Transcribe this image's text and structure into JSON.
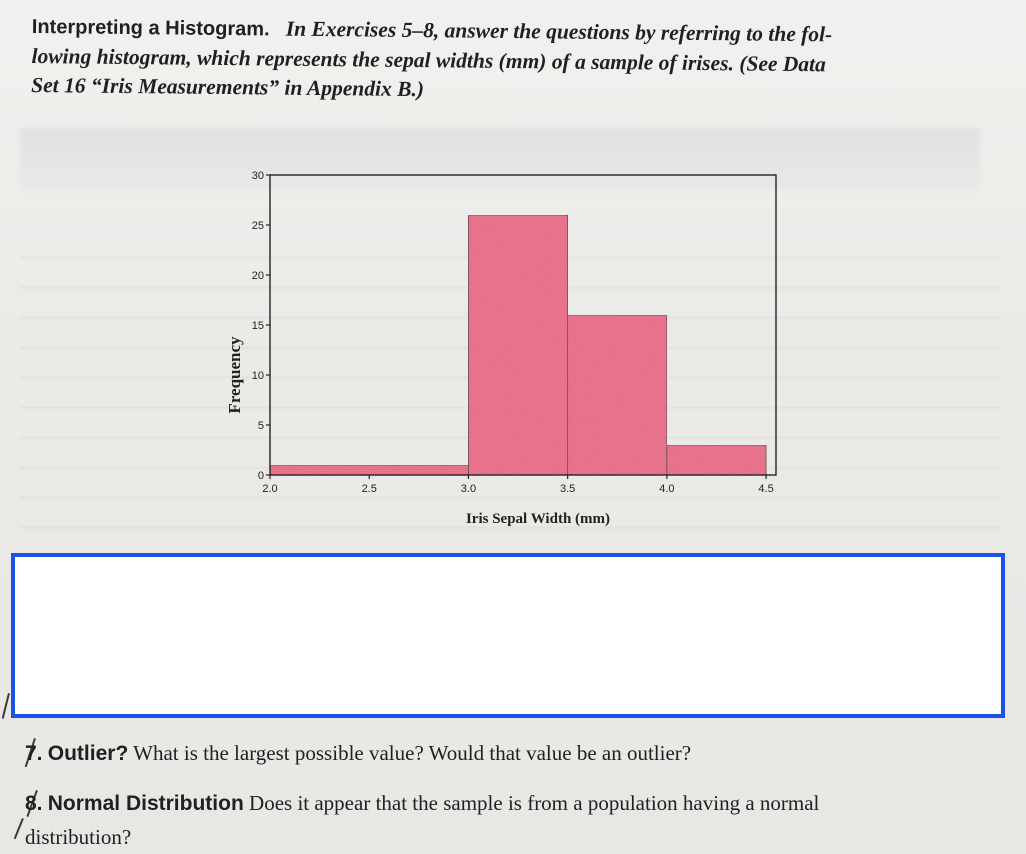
{
  "intro": {
    "heading": "Interpreting a Histogram.",
    "line1": "In Exercises 5–8, answer the questions by referring to the fol-",
    "line2": "lowing histogram, which represents the sepal widths (mm) of a sample of irises. (See Data",
    "line3": "Set 16 “Iris Measurements” in Appendix B.)"
  },
  "chart_data": {
    "type": "bar",
    "title": "",
    "xlabel": "Iris Sepal Width (mm)",
    "ylabel": "Frequency",
    "bins": [
      {
        "start": 2.0,
        "end": 3.0,
        "value": 1
      },
      {
        "start": 3.0,
        "end": 3.5,
        "value": 26
      },
      {
        "start": 3.5,
        "end": 4.0,
        "value": 16
      },
      {
        "start": 4.0,
        "end": 4.5,
        "value": 3
      }
    ],
    "xlim": [
      2.0,
      4.55
    ],
    "ylim": [
      0,
      30
    ],
    "xticks": [
      "2.0",
      "2.5",
      "3.0",
      "3.5",
      "4.0",
      "4.5"
    ],
    "yticks": [
      "0",
      "5",
      "10",
      "15",
      "20",
      "25",
      "30"
    ],
    "bar_color": "#e5607f",
    "grid": false,
    "legend": "none"
  },
  "questions": [
    {
      "number": "7.",
      "label": "Outlier?",
      "text": " What is the largest possible value? Would that value be an outlier?"
    },
    {
      "number": "8.",
      "label": "Normal Distribution",
      "text": " Does it appear that the sample is from a population having a normal",
      "cont": "distribution?"
    }
  ],
  "colors": {
    "redaction_border": "#1a52e6"
  }
}
